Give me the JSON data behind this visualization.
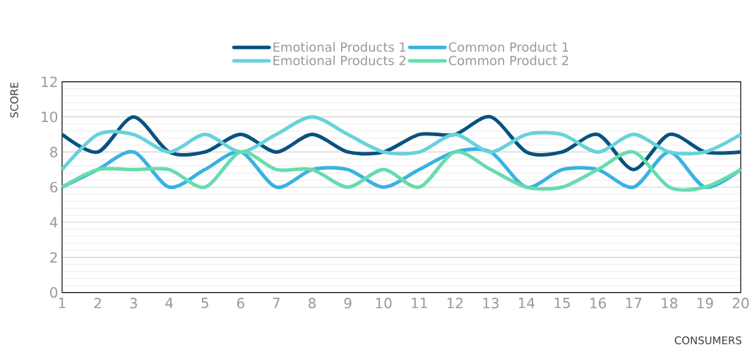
{
  "chart_data": {
    "type": "line",
    "xlabel": "CONSUMERS",
    "ylabel": "SCORE",
    "categories": [
      "1",
      "2",
      "3",
      "4",
      "5",
      "6",
      "7",
      "8",
      "9",
      "10",
      "11",
      "12",
      "13",
      "14",
      "15",
      "16",
      "17",
      "18",
      "19",
      "20"
    ],
    "series": [
      {
        "name": "Emotional Products 1",
        "color": "#08527f",
        "values": [
          9,
          8,
          10,
          8,
          8,
          9,
          8,
          9,
          8,
          8,
          9,
          9,
          10,
          8,
          8,
          9,
          7,
          9,
          8,
          8
        ]
      },
      {
        "name": "Common Product 1",
        "color": "#38b2e3",
        "values": [
          6,
          7,
          8,
          6,
          7,
          8,
          6,
          7,
          7,
          6,
          7,
          8,
          8,
          6,
          7,
          7,
          6,
          8,
          6,
          7
        ]
      },
      {
        "name": "Emotional Products 2",
        "color": "#67d2db",
        "values": [
          7,
          9,
          9,
          8,
          9,
          8,
          9,
          10,
          9,
          8,
          8,
          9,
          8,
          9,
          9,
          8,
          9,
          8,
          8,
          9
        ]
      },
      {
        "name": "Common Product 2",
        "color": "#67dcac",
        "values": [
          6,
          7,
          7,
          7,
          6,
          8,
          7,
          7,
          6,
          7,
          6,
          8,
          7,
          6,
          6,
          7,
          8,
          6,
          6,
          7
        ]
      }
    ],
    "ylim": [
      0,
      12
    ],
    "yticks": [
      0,
      2,
      4,
      6,
      8,
      10,
      12
    ],
    "grid": "y",
    "legend": "top",
    "marker": "none",
    "line_style": "solid"
  }
}
